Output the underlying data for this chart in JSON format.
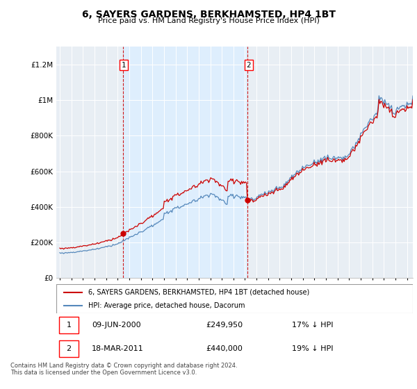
{
  "title": "6, SAYERS GARDENS, BERKHAMSTED, HP4 1BT",
  "subtitle": "Price paid vs. HM Land Registry's House Price Index (HPI)",
  "legend_line1": "6, SAYERS GARDENS, BERKHAMSTED, HP4 1BT (detached house)",
  "legend_line2": "HPI: Average price, detached house, Dacorum",
  "transaction1_date": "09-JUN-2000",
  "transaction1_price": "£249,950",
  "transaction1_hpi": "17% ↓ HPI",
  "transaction1_year": 2000.44,
  "transaction1_value": 249950,
  "transaction2_date": "18-MAR-2011",
  "transaction2_price": "£440,000",
  "transaction2_hpi": "19% ↓ HPI",
  "transaction2_year": 2011.21,
  "transaction2_value": 440000,
  "hpi_color": "#5588bb",
  "price_color": "#cc0000",
  "vline_color": "#cc0000",
  "shade_color": "#ddeeff",
  "background_color": "#e8eef4",
  "ylim": [
    0,
    1300000
  ],
  "xlim_start": 1994.7,
  "xlim_end": 2025.5,
  "footer": "Contains HM Land Registry data © Crown copyright and database right 2024.\nThis data is licensed under the Open Government Licence v3.0.",
  "yticks": [
    0,
    200000,
    400000,
    600000,
    800000,
    1000000,
    1200000
  ],
  "ytick_labels": [
    "£0",
    "£200K",
    "£400K",
    "£600K",
    "£800K",
    "£1M",
    "£1.2M"
  ]
}
